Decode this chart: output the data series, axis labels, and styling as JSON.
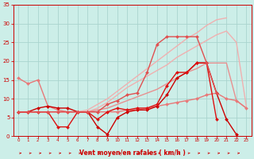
{
  "bg_color": "#cceee8",
  "grid_color": "#aad4ce",
  "xlabel": "Vent moyen/en rafales ( km/h )",
  "xlabel_color": "#cc0000",
  "tick_color": "#cc0000",
  "xlim": [
    -0.5,
    23.5
  ],
  "ylim": [
    0,
    35
  ],
  "xticks": [
    0,
    1,
    2,
    3,
    4,
    5,
    6,
    7,
    8,
    9,
    10,
    11,
    12,
    13,
    14,
    15,
    16,
    17,
    18,
    19,
    20,
    21,
    22,
    23
  ],
  "yticks": [
    0,
    5,
    10,
    15,
    20,
    25,
    30,
    35
  ],
  "series": [
    {
      "x": [
        0,
        1,
        2,
        3,
        4,
        5,
        6,
        7,
        8,
        9,
        10,
        11,
        12,
        13,
        14,
        15,
        16,
        17,
        18,
        19,
        20,
        21
      ],
      "y": [
        6.5,
        6.5,
        6.5,
        6.5,
        6.5,
        6.5,
        6.5,
        7.0,
        8.5,
        10.0,
        12.0,
        14.0,
        16.0,
        18.0,
        20.0,
        22.0,
        24.0,
        26.0,
        27.5,
        29.5,
        31.0,
        31.5
      ],
      "color": "#f0b0b0",
      "lw": 1.0,
      "marker": null
    },
    {
      "x": [
        0,
        1,
        2,
        3,
        4,
        5,
        6,
        7,
        8,
        9,
        10,
        11,
        12,
        13,
        14,
        15,
        16,
        17,
        18,
        19,
        20,
        21,
        22,
        23
      ],
      "y": [
        6.5,
        6.5,
        6.5,
        6.5,
        6.5,
        6.5,
        6.5,
        6.5,
        7.5,
        9.0,
        11.0,
        13.0,
        14.5,
        16.0,
        17.5,
        19.0,
        21.0,
        22.5,
        24.0,
        25.5,
        27.0,
        28.0,
        25.0,
        8.0
      ],
      "color": "#f0b0b0",
      "lw": 1.0,
      "marker": null
    },
    {
      "x": [
        0,
        1,
        2,
        3,
        4,
        5,
        6,
        7,
        8,
        9,
        10,
        11,
        12,
        13,
        14,
        15,
        16,
        17,
        18,
        19,
        20,
        21,
        22,
        23
      ],
      "y": [
        6.5,
        6.5,
        6.5,
        6.5,
        6.5,
        6.5,
        6.5,
        6.5,
        7.0,
        7.5,
        8.5,
        9.5,
        10.5,
        11.5,
        12.5,
        14.0,
        15.5,
        17.0,
        18.0,
        19.5,
        19.5,
        19.5,
        9.5,
        7.5
      ],
      "color": "#e89090",
      "lw": 1.0,
      "marker": null
    },
    {
      "x": [
        0,
        1,
        2,
        3,
        4,
        5,
        6,
        7,
        8,
        9,
        10,
        11,
        12,
        13,
        14,
        15,
        16,
        17,
        18,
        19,
        20,
        21,
        22,
        23
      ],
      "y": [
        15.5,
        14.0,
        15.0,
        8.0,
        7.0,
        6.5,
        6.5,
        6.5,
        6.5,
        6.5,
        6.5,
        7.0,
        7.0,
        7.5,
        8.0,
        8.5,
        9.0,
        9.5,
        10.0,
        11.0,
        11.5,
        10.0,
        9.5,
        7.5
      ],
      "color": "#e87878",
      "lw": 1.0,
      "marker": "D",
      "ms": 2.0
    },
    {
      "x": [
        0,
        1,
        2,
        3,
        4,
        5,
        6,
        7,
        8,
        9,
        10,
        11,
        12,
        13,
        14,
        15,
        16,
        17,
        18,
        19,
        20,
        21,
        22
      ],
      "y": [
        6.5,
        6.5,
        7.5,
        8.0,
        7.5,
        7.5,
        6.5,
        6.5,
        2.5,
        0.5,
        5.0,
        6.5,
        7.0,
        7.0,
        8.0,
        11.0,
        15.5,
        17.0,
        19.5,
        19.5,
        11.5,
        4.5,
        0.5
      ],
      "color": "#cc0000",
      "lw": 1.0,
      "marker": "D",
      "ms": 2.0
    },
    {
      "x": [
        0,
        1,
        2,
        3,
        4,
        5,
        6,
        7,
        8,
        9,
        10,
        11,
        12,
        13,
        14,
        15,
        16,
        17,
        18,
        19,
        20
      ],
      "y": [
        6.5,
        6.5,
        6.5,
        6.5,
        2.5,
        2.5,
        6.5,
        6.5,
        4.5,
        6.5,
        7.5,
        7.0,
        7.5,
        7.5,
        8.5,
        13.5,
        17.0,
        17.0,
        19.5,
        19.5,
        4.5
      ],
      "color": "#dd1010",
      "lw": 1.0,
      "marker": "D",
      "ms": 2.0
    },
    {
      "x": [
        0,
        1,
        2,
        3,
        4,
        5,
        6,
        7,
        8,
        9,
        10,
        11,
        12,
        13,
        14,
        15,
        16,
        17,
        18,
        19,
        20
      ],
      "y": [
        6.5,
        6.5,
        6.5,
        6.5,
        6.5,
        6.5,
        6.5,
        6.5,
        6.5,
        8.5,
        9.5,
        11.0,
        11.5,
        17.0,
        24.5,
        26.5,
        26.5,
        26.5,
        26.5,
        19.5,
        11.5
      ],
      "color": "#e05050",
      "lw": 1.0,
      "marker": "D",
      "ms": 2.0
    }
  ],
  "figsize": [
    3.2,
    2.0
  ],
  "dpi": 100
}
